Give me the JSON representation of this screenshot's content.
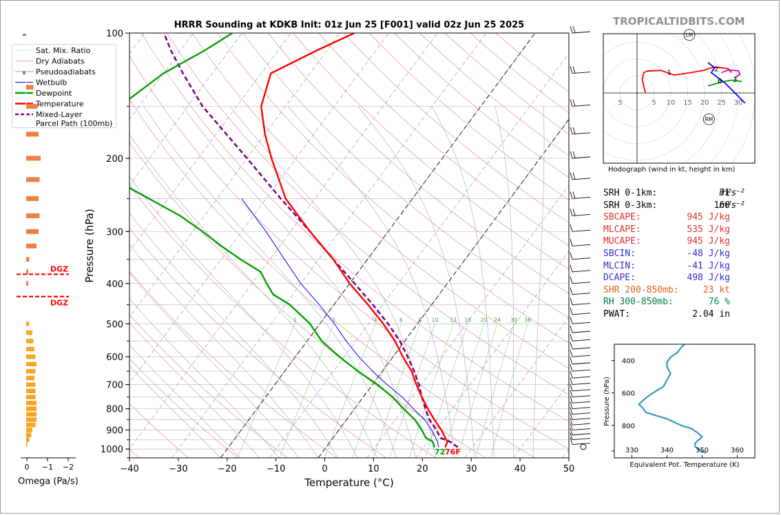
{
  "watermark": "TROPICALTIDBITS.COM",
  "skewt": {
    "title": "HRRR Sounding at KDKB Init: 01z Jun 25 [F001] valid 02z Jun 25 2025",
    "xlabel": "Temperature (°C)",
    "ylabel": "Pressure (hPa)",
    "xticks": [
      -40,
      -30,
      -20,
      -10,
      0,
      10,
      20,
      30,
      40,
      50
    ],
    "yticks": [
      100,
      200,
      300,
      400,
      500,
      600,
      700,
      800,
      900,
      1000
    ],
    "sfc_dewpoint_label": "72",
    "sfc_temp_label": "76F",
    "mixing_ratio_labels": [
      "1",
      "2",
      "4",
      "6",
      "8",
      "10",
      "13",
      "16",
      "20",
      "24",
      "30",
      "36"
    ],
    "colors": {
      "temperature": "#ff0000",
      "dewpoint": "#00a000",
      "wetbulb": "#0000ff",
      "parcel": "#800080",
      "dry_adiabat": "#e08080",
      "moist_adiabat": "#a0a0e0",
      "mixing_ratio": "#40a040"
    }
  },
  "legend": {
    "items": [
      {
        "label": "Sat. Mix. Ratio",
        "style": "dotted"
      },
      {
        "label": "Dry Adiabats",
        "style": "thin-red"
      },
      {
        "label": "Pseudoadiabats",
        "style": "thin-grey"
      },
      {
        "label": "Wetbulb",
        "style": "blue"
      },
      {
        "label": "Dewpoint",
        "style": "green"
      },
      {
        "label": "Temperature",
        "style": "red"
      },
      {
        "label": "Mixed-Layer",
        "style": "purple-dash"
      },
      {
        "label": "Parcel Path (100mb)",
        "style": "none"
      }
    ]
  },
  "omega": {
    "xlabel": "Omega (Pa/s)",
    "xticks": [
      "0",
      "−1",
      "−2"
    ],
    "dgz_label": "DGZ",
    "dgz_pressures": [
      380,
      430
    ]
  },
  "hodograph": {
    "caption": "Hodograph (wind in kt, height in km)",
    "ring_labels": [
      "5",
      "5",
      "10",
      "15",
      "20",
      "25",
      "30"
    ],
    "height_labels": [
      "1",
      "2",
      "3",
      "6"
    ],
    "lm_label": "LM",
    "rm_label": "RM"
  },
  "indices": [
    {
      "label": "SRH 0-1km:",
      "value": "71",
      "unit": "m²s⁻²",
      "color": "#000000"
    },
    {
      "label": "SRH 0-3km:",
      "value": "160",
      "unit": "m²s⁻²",
      "color": "#000000"
    },
    {
      "label": "SBCAPE:",
      "value": "945 J/kg",
      "unit": "",
      "color": "#e03030"
    },
    {
      "label": "MLCAPE:",
      "value": "535 J/kg",
      "unit": "",
      "color": "#e03030"
    },
    {
      "label": "MUCAPE:",
      "value": "945 J/kg",
      "unit": "",
      "color": "#e03030"
    },
    {
      "label": "SBCIN:",
      "value": "-48 J/kg",
      "unit": "",
      "color": "#3030d0"
    },
    {
      "label": "MLCIN:",
      "value": "-41 J/kg",
      "unit": "",
      "color": "#3030d0"
    },
    {
      "label": "DCAPE:",
      "value": "498 J/kg",
      "unit": "",
      "color": "#3030d0"
    },
    {
      "label": "SHR 200-850mb:",
      "value": "23 kt",
      "unit": "",
      "color": "#e06020"
    },
    {
      "label": "RH 300-850mb:",
      "value": "76 %",
      "unit": "",
      "color": "#008040"
    },
    {
      "label": "PWAT:",
      "value": "2.04 in",
      "unit": "",
      "color": "#000000"
    }
  ],
  "theta_e": {
    "xlabel": "Equivalent Pot. Temperature (K)",
    "ylabel": "Pressure (hPa)",
    "xticks": [
      330,
      340,
      350,
      360
    ],
    "yticks": [
      400,
      600,
      800
    ]
  },
  "chart_data": [
    {
      "type": "line",
      "title": "HRRR Sounding at KDKB Init: 01z Jun 25 [F001] valid 02z Jun 25 2025",
      "xlabel": "Temperature (°C)",
      "ylabel": "Pressure (hPa)",
      "xlim": [
        -40,
        50
      ],
      "ylim": [
        1050,
        100
      ],
      "yscale": "log",
      "skew": true,
      "series": [
        {
          "name": "Temperature",
          "pressure": [
            990,
            960,
            940,
            900,
            850,
            800,
            750,
            700,
            650,
            600,
            550,
            500,
            450,
            400,
            350,
            300,
            250,
            200,
            175,
            150,
            125,
            110,
            100
          ],
          "temp": [
            24.4,
            24,
            23,
            21,
            18,
            15,
            12,
            9,
            6,
            2,
            -2,
            -7,
            -13,
            -20,
            -27,
            -36,
            -46,
            -55,
            -60,
            -65,
            -68,
            -62,
            -57
          ]
        },
        {
          "name": "Dewpoint",
          "pressure": [
            990,
            960,
            940,
            900,
            850,
            800,
            750,
            700,
            650,
            600,
            550,
            500,
            450,
            425,
            400,
            375,
            350,
            325,
            300,
            275,
            250,
            225,
            200,
            175,
            150,
            125,
            110,
            100
          ],
          "temp": [
            22.2,
            21,
            19,
            17,
            14,
            10,
            6,
            1,
            -5,
            -11,
            -17,
            -22,
            -29,
            -34,
            -37,
            -40,
            -46,
            -52,
            -58,
            -65,
            -74,
            -84,
            -86,
            -89,
            -94,
            -90,
            -85,
            -82
          ]
        },
        {
          "name": "Wetbulb",
          "pressure": [
            990,
            960,
            940,
            900,
            850,
            800,
            750,
            700,
            650,
            600,
            550,
            500,
            450,
            400,
            350,
            300,
            250
          ],
          "temp": [
            23,
            22,
            21,
            19,
            16,
            12,
            8,
            3,
            -2,
            -7,
            -12,
            -17,
            -23,
            -30,
            -37,
            -45,
            -55
          ]
        },
        {
          "name": "Mixed-Layer Parcel Path (100mb)",
          "pressure": [
            990,
            960,
            940,
            900,
            850,
            800,
            750,
            700,
            650,
            600,
            550,
            500,
            450,
            400,
            350,
            300,
            250,
            200,
            150,
            125,
            110,
            100
          ],
          "temp": [
            27,
            24.5,
            22,
            20,
            17,
            14.5,
            12,
            9.5,
            6.5,
            3,
            -1,
            -6,
            -12,
            -19,
            -27,
            -36,
            -47,
            -60,
            -77,
            -86,
            -92,
            -96
          ]
        }
      ]
    },
    {
      "type": "bar",
      "title": "",
      "xlabel": "Omega (Pa/s)",
      "pressure": [
        975,
        950,
        925,
        900,
        875,
        850,
        825,
        800,
        775,
        750,
        725,
        700,
        675,
        650,
        625,
        600,
        575,
        550,
        525,
        500,
        400,
        375,
        350,
        325,
        300,
        275,
        250,
        225,
        200,
        175,
        150,
        135
      ],
      "values": [
        -0.05,
        -0.15,
        -0.25,
        -0.3,
        -0.45,
        -0.5,
        -0.5,
        -0.5,
        -0.5,
        -0.45,
        -0.45,
        -0.45,
        -0.4,
        -0.45,
        -0.5,
        -0.45,
        -0.4,
        -0.35,
        -0.3,
        -0.15,
        -0.1,
        -0.1,
        -0.15,
        -0.5,
        -0.6,
        -0.65,
        -0.6,
        -0.65,
        -0.7,
        -0.6,
        -0.55,
        -0.35
      ]
    },
    {
      "type": "line",
      "title": "",
      "xlabel": "Equivalent Pot. Temperature (K)",
      "ylabel": "Pressure (hPa)",
      "xlim": [
        325,
        365
      ],
      "ylim": [
        1000,
        300
      ],
      "series": [
        {
          "name": "",
          "pressure": [
            970,
            950,
            930,
            910,
            890,
            870,
            850,
            820,
            800,
            780,
            760,
            720,
            690,
            670,
            650,
            630,
            600,
            560,
            520,
            480,
            440,
            410,
            380,
            350,
            320,
            300
          ],
          "theta_e": [
            351,
            349,
            348,
            348,
            349,
            350,
            349,
            347,
            344,
            342,
            340,
            334,
            333,
            332,
            333,
            334,
            336,
            339,
            340,
            341,
            340,
            340,
            341,
            343,
            344,
            345
          ]
        }
      ]
    }
  ]
}
